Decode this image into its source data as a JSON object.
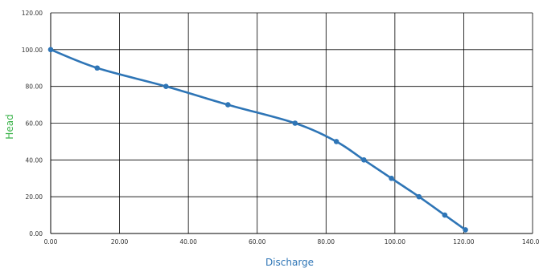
{
  "chart_data": {
    "type": "line",
    "title": "",
    "xlabel": "Discharge",
    "ylabel": "Head",
    "xlim": [
      0,
      140
    ],
    "ylim": [
      0,
      120
    ],
    "x_ticks": [
      "0.00",
      "20.00",
      "40.00",
      "60.00",
      "80.00",
      "100.00",
      "120.00",
      "140.00"
    ],
    "y_ticks": [
      "0.00",
      "20.00",
      "40.00",
      "60.00",
      "80.00",
      "100.00",
      "120.00"
    ],
    "grid": true,
    "legend": "none",
    "axis_label_color": "#3bb34a",
    "xlabel_color": "#2e75b6",
    "series": [
      {
        "color": "#2e75b6",
        "points": [
          {
            "x": 0,
            "y": 100
          },
          {
            "x": 13.5,
            "y": 90
          },
          {
            "x": 33.5,
            "y": 80
          },
          {
            "x": 51.5,
            "y": 70
          },
          {
            "x": 71,
            "y": 60
          },
          {
            "x": 83,
            "y": 50
          },
          {
            "x": 91,
            "y": 40
          },
          {
            "x": 99,
            "y": 30
          },
          {
            "x": 107,
            "y": 20
          },
          {
            "x": 114.5,
            "y": 10
          },
          {
            "x": 120.5,
            "y": 2
          }
        ]
      }
    ]
  }
}
